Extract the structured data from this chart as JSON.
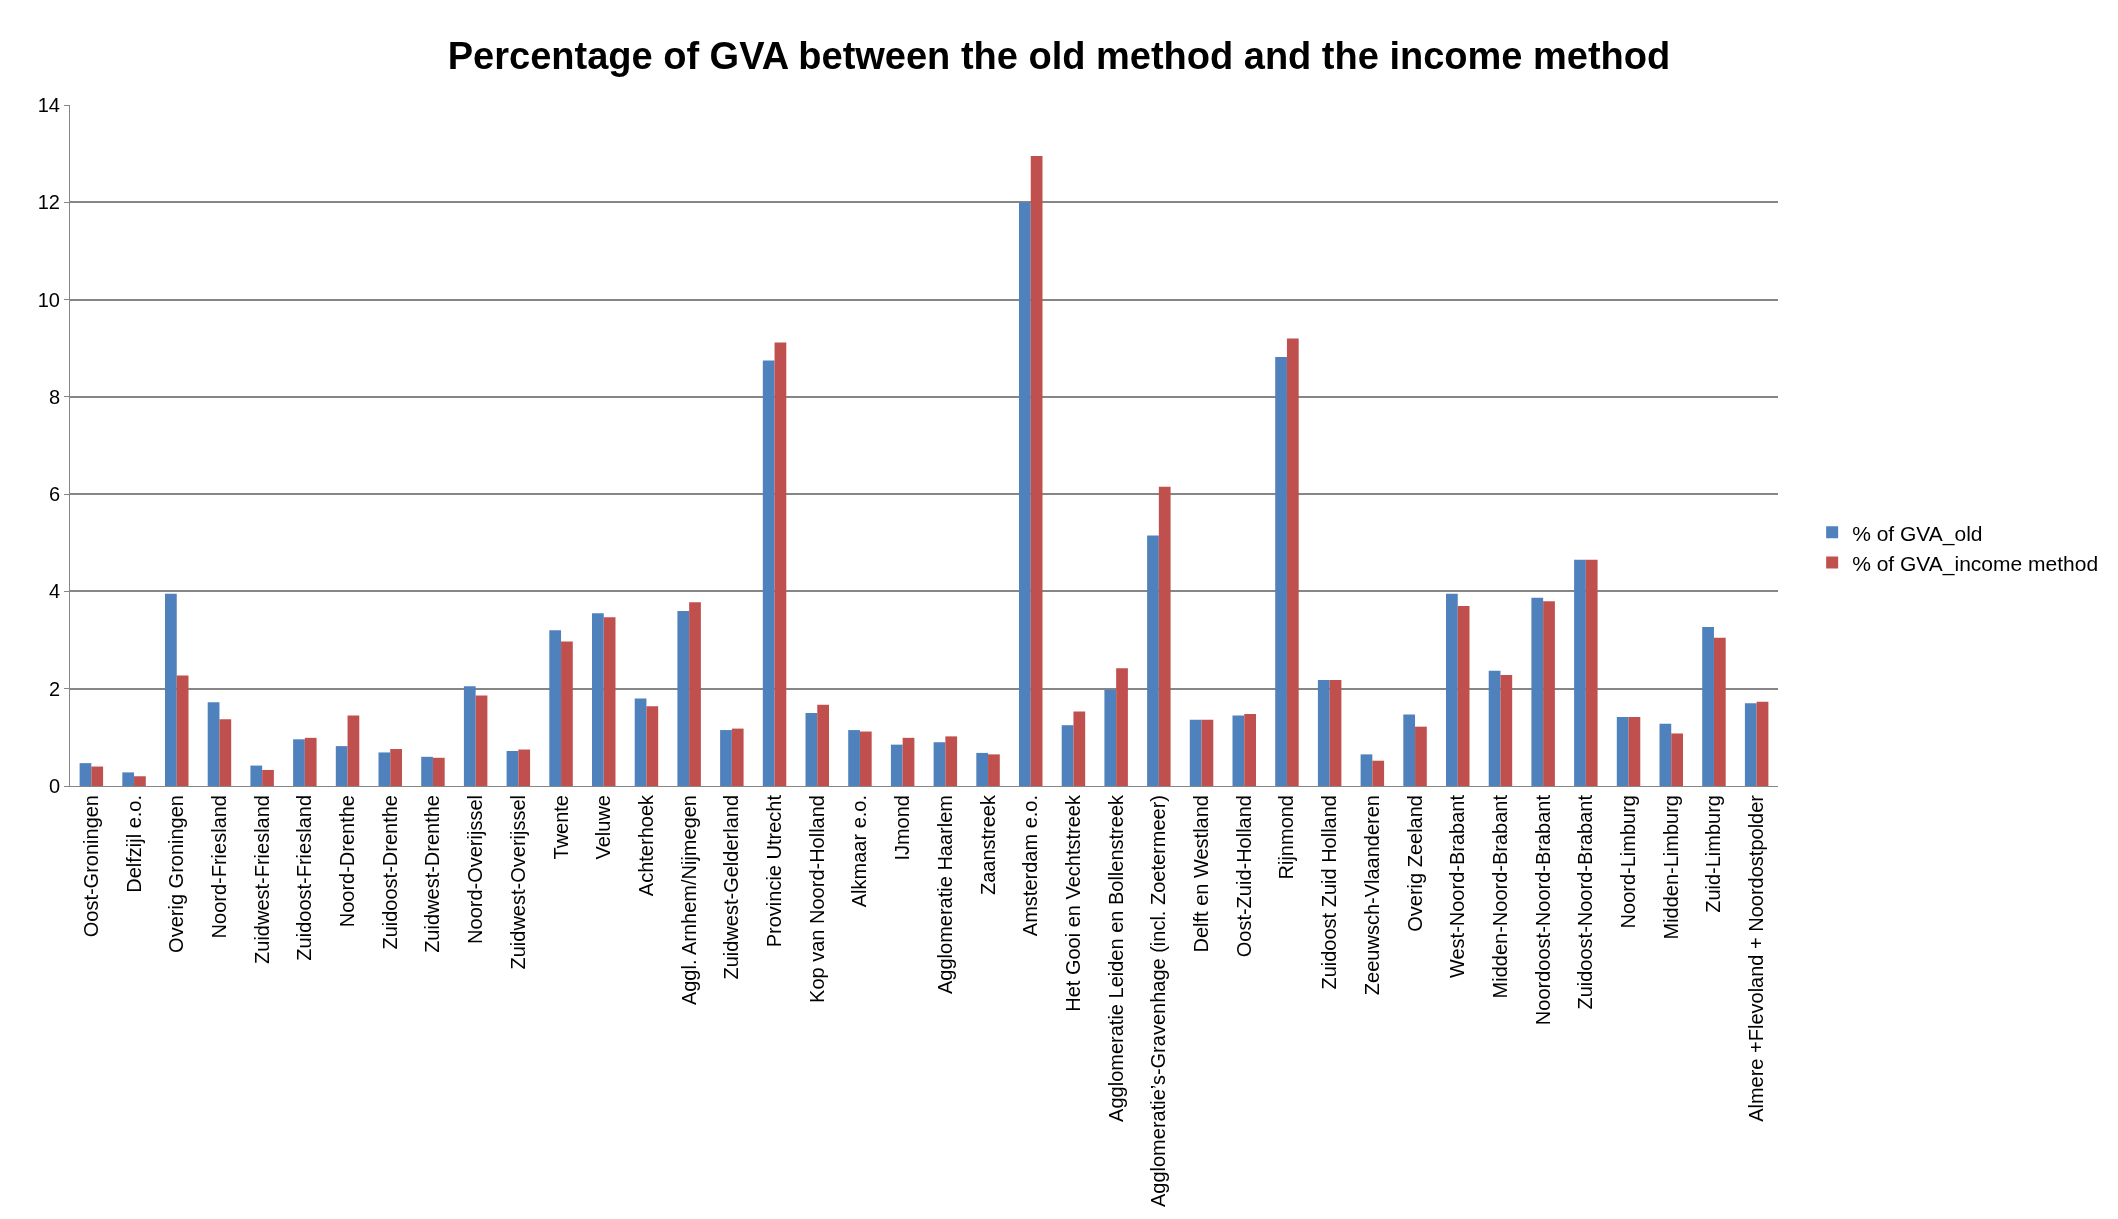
{
  "chart_data": {
    "type": "bar",
    "title": "Percentage of GVA between the old method and the income method",
    "categories": [
      "Oost-Groningen",
      "Delfzijl e.o.",
      "Overig Groningen",
      "Noord-Friesland",
      "Zuidwest-Friesland",
      "Zuidoost-Friesland",
      "Noord-Drenthe",
      "Zuidoost-Drenthe",
      "Zuidwest-Drenthe",
      "Noord-Overijssel",
      "Zuidwest-Overijssel",
      "Twente",
      "Veluwe",
      "Achterhoek",
      "Aggl. Arnhem/Nijmegen",
      "Zuidwest-Gelderland",
      "Provincie Utrecht",
      "Kop van Noord-Holland",
      "Alkmaar e.o.",
      "IJmond",
      "Agglomeratie Haarlem",
      "Zaanstreek",
      "Amsterdam e.o.",
      "Het Gooi en Vechtstreek",
      "Agglomeratie Leiden en Bollenstreek",
      "Agglomeratie’s-Gravenhage (incl. Zoetermeer)",
      "Delft en Westland",
      "Oost-Zuid-Holland",
      "Rijnmond",
      "Zuidoost Zuid Holland",
      "Zeeuwsch-Vlaanderen",
      "Overig Zeeland",
      "West-Noord-Brabant",
      "Midden-Noord-Brabant",
      "Noordoost-Noord-Brabant",
      "Zuidoost-Noord-Brabant",
      "Noord-Limburg",
      "Midden-Limburg",
      "Zuid-Limburg",
      "Almere +Flevoland + Noordostpolder"
    ],
    "series": [
      {
        "name": "% of GVA_old",
        "color": "#4f81bd",
        "values": [
          0.47,
          0.28,
          3.95,
          1.72,
          0.42,
          0.96,
          0.82,
          0.69,
          0.6,
          2.05,
          0.72,
          3.2,
          3.55,
          1.8,
          3.6,
          1.15,
          8.75,
          1.5,
          1.15,
          0.85,
          0.9,
          0.68,
          12.0,
          1.25,
          1.98,
          5.15,
          1.36,
          1.45,
          8.82,
          2.18,
          0.65,
          1.47,
          3.95,
          2.37,
          3.87,
          4.65,
          1.42,
          1.28,
          3.27,
          1.7
        ]
      },
      {
        "name": "% of GVA_income method",
        "color": "#c0504d",
        "values": [
          0.4,
          0.2,
          2.27,
          1.37,
          0.33,
          0.99,
          1.45,
          0.76,
          0.58,
          1.86,
          0.75,
          2.97,
          3.47,
          1.64,
          3.78,
          1.18,
          9.12,
          1.67,
          1.12,
          0.99,
          1.02,
          0.65,
          12.95,
          1.53,
          2.42,
          6.15,
          1.36,
          1.48,
          9.2,
          2.18,
          0.52,
          1.22,
          3.7,
          2.28,
          3.8,
          4.65,
          1.42,
          1.08,
          3.05,
          1.73
        ]
      }
    ],
    "ylim": [
      0,
      14
    ],
    "yticks": [
      0,
      2,
      4,
      6,
      8,
      10,
      12,
      14
    ],
    "grid": "y",
    "legend": "right"
  }
}
